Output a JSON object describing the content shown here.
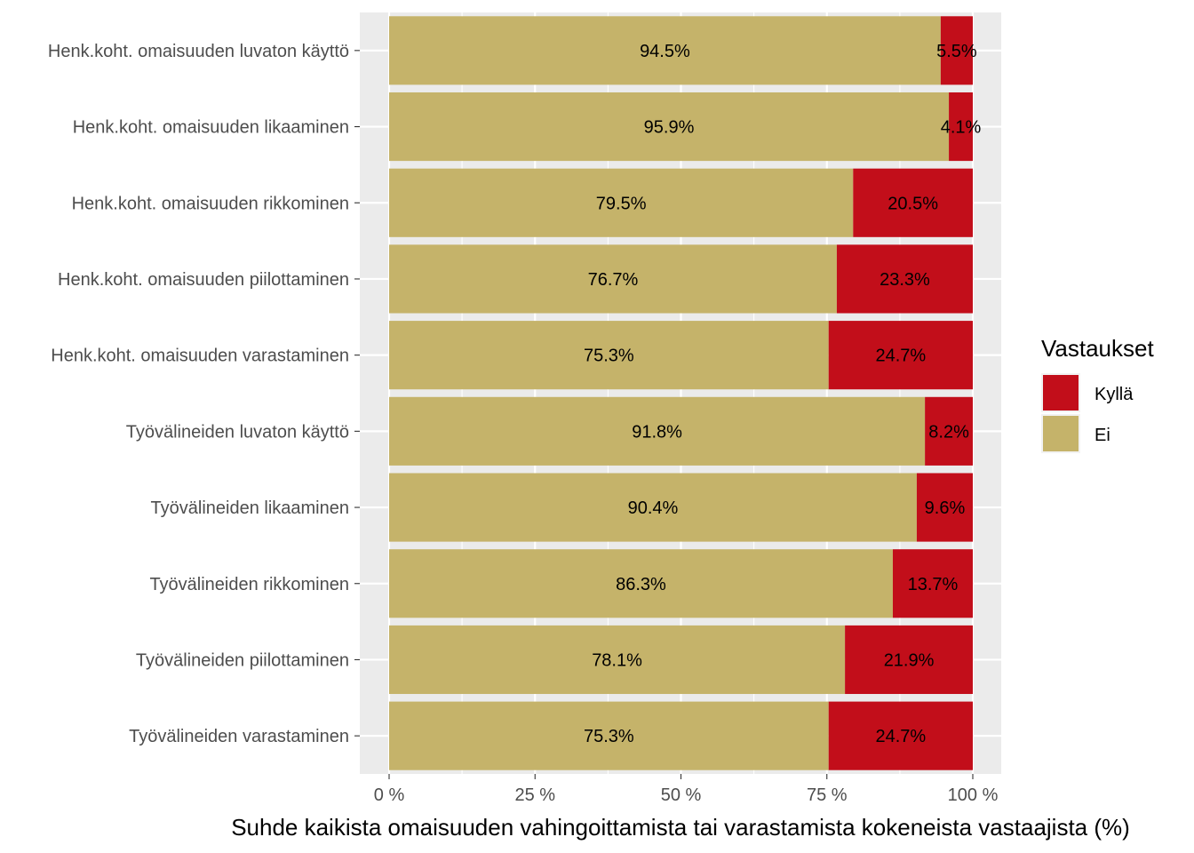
{
  "chart_data": {
    "type": "bar",
    "orientation": "horizontal",
    "stacked": true,
    "categories": [
      "Henk.koht. omaisuuden luvaton käyttö",
      "Henk.koht. omaisuuden likaaminen",
      "Henk.koht. omaisuuden rikkominen",
      "Henk.koht. omaisuuden piilottaminen",
      "Henk.koht. omaisuuden varastaminen",
      "Työvälineiden luvaton käyttö",
      "Työvälineiden likaaminen",
      "Työvälineiden rikkominen",
      "Työvälineiden piilottaminen",
      "Työvälineiden varastaminen"
    ],
    "series": [
      {
        "name": "Ei",
        "color": "#c5b36a",
        "values": [
          94.5,
          95.9,
          79.5,
          76.7,
          75.3,
          91.8,
          90.4,
          86.3,
          78.1,
          75.3
        ],
        "labels": [
          "94.5%",
          "95.9%",
          "79.5%",
          "76.7%",
          "75.3%",
          "91.8%",
          "90.4%",
          "86.3%",
          "78.1%",
          "75.3%"
        ]
      },
      {
        "name": "Kyllä",
        "color": "#c20e1a",
        "values": [
          5.5,
          4.1,
          20.5,
          23.3,
          24.7,
          8.2,
          9.6,
          13.7,
          21.9,
          24.7
        ],
        "labels": [
          "5.5%",
          "4.1%",
          "20.5%",
          "23.3%",
          "24.7%",
          "8.2%",
          "9.6%",
          "13.7%",
          "21.9%",
          "24.7%"
        ]
      }
    ],
    "xlabel": "Suhde kaikista omaisuuden vahingoittamista tai varastamista kokeneista vastaajista (%)",
    "ylabel": "",
    "xlim": [
      0,
      100
    ],
    "xticks": [
      0,
      25,
      50,
      75,
      100
    ],
    "xtick_labels": [
      "0 %",
      "25 %",
      "50 %",
      "75 %",
      "100 %"
    ],
    "grid": true,
    "legend": {
      "title": "Vastaukset",
      "placement": "right",
      "entries": [
        {
          "name": "Kyllä",
          "color": "#c20e1a"
        },
        {
          "name": "Ei",
          "color": "#c5b36a"
        }
      ]
    },
    "panel_background": "#ebebeb",
    "grid_color": "#ffffff"
  }
}
